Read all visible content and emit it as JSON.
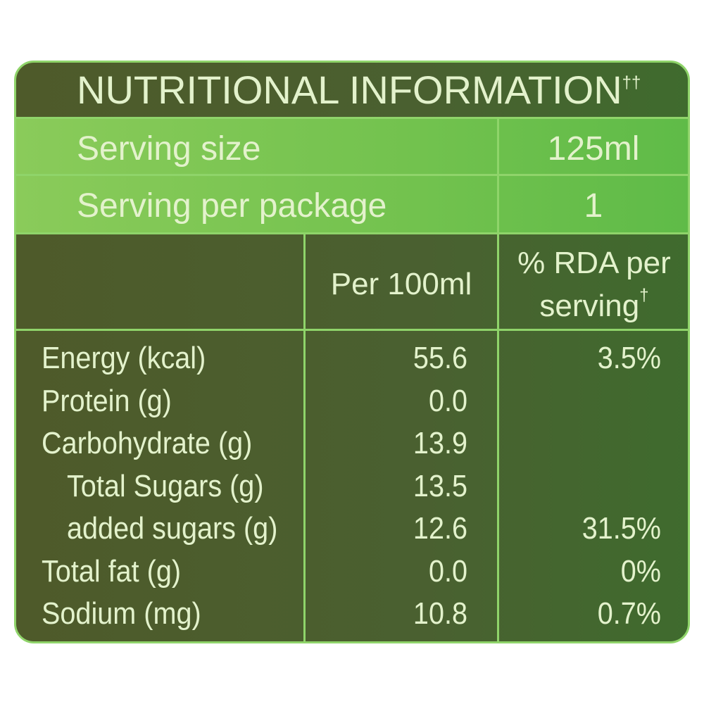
{
  "header": {
    "title": "NUTRITIONAL INFORMATION",
    "title_mark": "††"
  },
  "serving": [
    {
      "label": "Serving size",
      "value": "125ml"
    },
    {
      "label": "Serving per package",
      "value": "1"
    }
  ],
  "table": {
    "columns": {
      "per100": "Per 100ml",
      "rda": "% RDA per serving",
      "rda_mark": "†"
    },
    "rows": [
      {
        "name": "Energy (kcal)",
        "per100": "55.6",
        "rda": "3.5%"
      },
      {
        "name": "Protein (g)",
        "per100": "0.0"
      },
      {
        "name": "Carbohydrate (g)",
        "per100": "13.9"
      },
      {
        "name": "Total Sugars (g)",
        "per100": "13.5",
        "indent": true
      },
      {
        "name": "added sugars (g)",
        "per100": "12.6",
        "rda": "31.5%",
        "indent": true
      },
      {
        "name": "Total fat (g)",
        "per100": "0.0",
        "rda": "0%"
      },
      {
        "name": "Sodium (mg)",
        "per100": "10.8",
        "rda": "0.7%"
      }
    ]
  }
}
